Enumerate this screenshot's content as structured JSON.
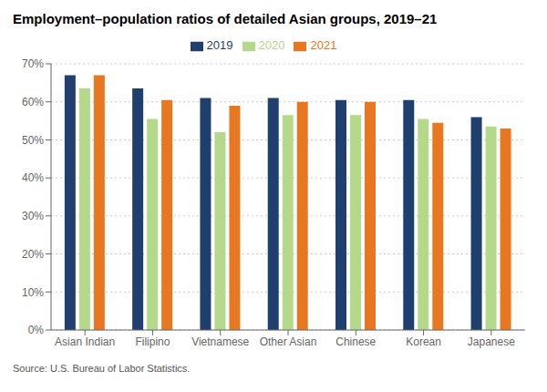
{
  "chart_data": {
    "type": "bar",
    "title": "Employment–population ratios of detailed Asian groups, 2019–21",
    "categories": [
      "Asian Indian",
      "Filipino",
      "Vietnamese",
      "Other Asian",
      "Chinese",
      "Korean",
      "Japanese"
    ],
    "series": [
      {
        "name": "2019",
        "color": "#1f3f6e",
        "values": [
          67.0,
          63.5,
          61.0,
          61.0,
          60.5,
          60.5,
          56.0
        ]
      },
      {
        "name": "2020",
        "color": "#b5d98b",
        "values": [
          63.5,
          55.5,
          52.0,
          56.5,
          56.5,
          55.5,
          53.5
        ]
      },
      {
        "name": "2021",
        "color": "#e87722",
        "values": [
          67.0,
          60.5,
          59.0,
          60.0,
          60.0,
          54.5,
          53.0
        ]
      }
    ],
    "ylim": [
      0,
      70
    ],
    "yticks": [
      {
        "value": 0,
        "label": "0%"
      },
      {
        "value": 10,
        "label": "10%"
      },
      {
        "value": 20,
        "label": "20%"
      },
      {
        "value": 30,
        "label": "30%"
      },
      {
        "value": 40,
        "label": "40%"
      },
      {
        "value": 50,
        "label": "50%"
      },
      {
        "value": 60,
        "label": "60%"
      },
      {
        "value": 70,
        "label": "70%"
      }
    ],
    "grid": true,
    "legend": "top",
    "annotations": [
      "Source: U.S. Bureau of Labor Statistics."
    ]
  }
}
